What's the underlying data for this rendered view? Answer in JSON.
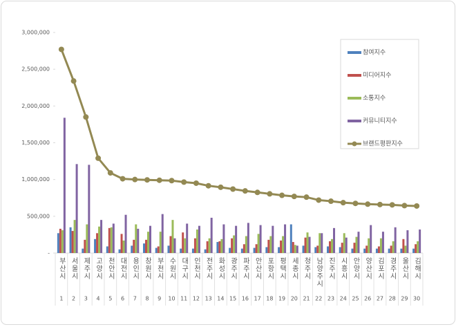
{
  "chart_data": {
    "type": "bar-line",
    "categories": [
      "부산시",
      "서울시",
      "제주시",
      "고양시",
      "천안시",
      "대전시",
      "용인시",
      "창원시",
      "부천시",
      "수원시",
      "대구시",
      "인천시",
      "전주시",
      "화성시",
      "광주시",
      "파주시",
      "안산시",
      "포항시",
      "평택시",
      "세종시",
      "청주시",
      "남양주시",
      "진주시",
      "시흥시",
      "안양시",
      "양산시",
      "김포시",
      "경주시",
      "울산시",
      "김해시"
    ],
    "ranks": [
      1,
      2,
      3,
      4,
      5,
      6,
      7,
      8,
      9,
      10,
      11,
      12,
      13,
      14,
      15,
      16,
      17,
      18,
      19,
      20,
      21,
      22,
      23,
      24,
      25,
      26,
      27,
      28,
      29,
      30
    ],
    "series": [
      {
        "name": "참여지수",
        "type": "bar",
        "color": "#4f81bd",
        "values": [
          270000,
          350000,
          60000,
          190000,
          90000,
          50000,
          100000,
          130000,
          70000,
          100000,
          60000,
          60000,
          50000,
          150000,
          70000,
          60000,
          70000,
          80000,
          80000,
          390000,
          100000,
          80000,
          90000,
          80000,
          60000,
          60000,
          60000,
          60000,
          60000,
          60000
        ]
      },
      {
        "name": "미디어지수",
        "type": "bar",
        "color": "#c0504d",
        "values": [
          330000,
          300000,
          180000,
          270000,
          340000,
          260000,
          180000,
          180000,
          90000,
          230000,
          280000,
          200000,
          160000,
          160000,
          200000,
          120000,
          120000,
          180000,
          170000,
          150000,
          210000,
          100000,
          160000,
          140000,
          140000,
          100000,
          90000,
          100000,
          190000,
          120000
        ]
      },
      {
        "name": "소통지수",
        "type": "bar",
        "color": "#9bbb59",
        "values": [
          310000,
          450000,
          390000,
          360000,
          350000,
          170000,
          390000,
          290000,
          290000,
          450000,
          200000,
          320000,
          200000,
          190000,
          240000,
          230000,
          260000,
          230000,
          230000,
          110000,
          280000,
          270000,
          190000,
          270000,
          220000,
          200000,
          200000,
          160000,
          100000,
          160000
        ]
      },
      {
        "name": "커뮤니티지수",
        "type": "bar",
        "color": "#8064a2",
        "values": [
          1840000,
          1210000,
          1200000,
          450000,
          400000,
          520000,
          330000,
          370000,
          530000,
          200000,
          400000,
          370000,
          480000,
          390000,
          370000,
          410000,
          380000,
          370000,
          390000,
          100000,
          220000,
          270000,
          340000,
          210000,
          290000,
          380000,
          290000,
          350000,
          310000,
          320000
        ]
      },
      {
        "name": "브랜드평판지수",
        "type": "line",
        "color": "#938953",
        "values": [
          2770000,
          2340000,
          1850000,
          1290000,
          1090000,
          1010000,
          1000000,
          995000,
          990000,
          985000,
          965000,
          950000,
          915000,
          895000,
          870000,
          845000,
          825000,
          805000,
          785000,
          770000,
          760000,
          720000,
          705000,
          685000,
          675000,
          665000,
          660000,
          655000,
          645000,
          640000
        ]
      }
    ],
    "ylim": [
      0,
      3000000
    ],
    "yticks": [
      {
        "value": 0,
        "label": "-"
      },
      {
        "value": 500000,
        "label": "500,000"
      },
      {
        "value": 1000000,
        "label": "1,000,000"
      },
      {
        "value": 1500000,
        "label": "1,500,000"
      },
      {
        "value": 2000000,
        "label": "2,000,000"
      },
      {
        "value": 2500000,
        "label": "2,500,000"
      },
      {
        "value": 3000000,
        "label": "3,000,000"
      }
    ],
    "legend": "right"
  }
}
